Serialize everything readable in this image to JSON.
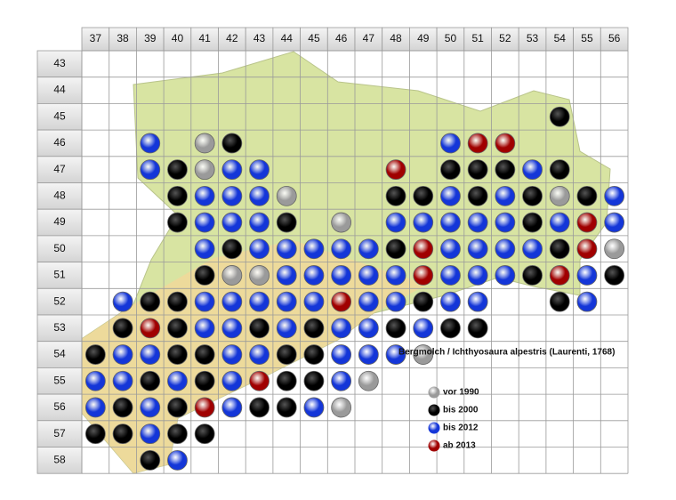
{
  "columns": [
    37,
    38,
    39,
    40,
    41,
    42,
    43,
    44,
    45,
    46,
    47,
    48,
    49,
    50,
    51,
    52,
    53,
    54,
    55,
    56
  ],
  "rows": [
    43,
    44,
    45,
    46,
    47,
    48,
    49,
    50,
    51,
    52,
    53,
    54,
    55,
    56,
    57,
    58
  ],
  "title": "Bergmolch / Ichthyosaura alpestris (Laurenti, 1768)",
  "legend": [
    {
      "label": "vor 1990",
      "color": "#9a9a9a"
    },
    {
      "label": "bis 2000",
      "color": "#000000"
    },
    {
      "label": "bis 2012",
      "color": "#1436d8"
    },
    {
      "label": "ab 2013",
      "color": "#a00000"
    }
  ],
  "records": [
    "....................",
    "....................",
    ".................1..",
    "..2.01.......233....",
    "..21022....3.11121..",
    "...12220...112121012",
    "...12221.0.222221232",
    "....2122222132222130",
    "....1002222232221321",
    ".21122222322122..12.",
    ".13122121221211.....",
    "1221122112220.......",
    "22121231120.........",
    "2121321120..........",
    "11211...............",
    "..12................"
  ]
}
